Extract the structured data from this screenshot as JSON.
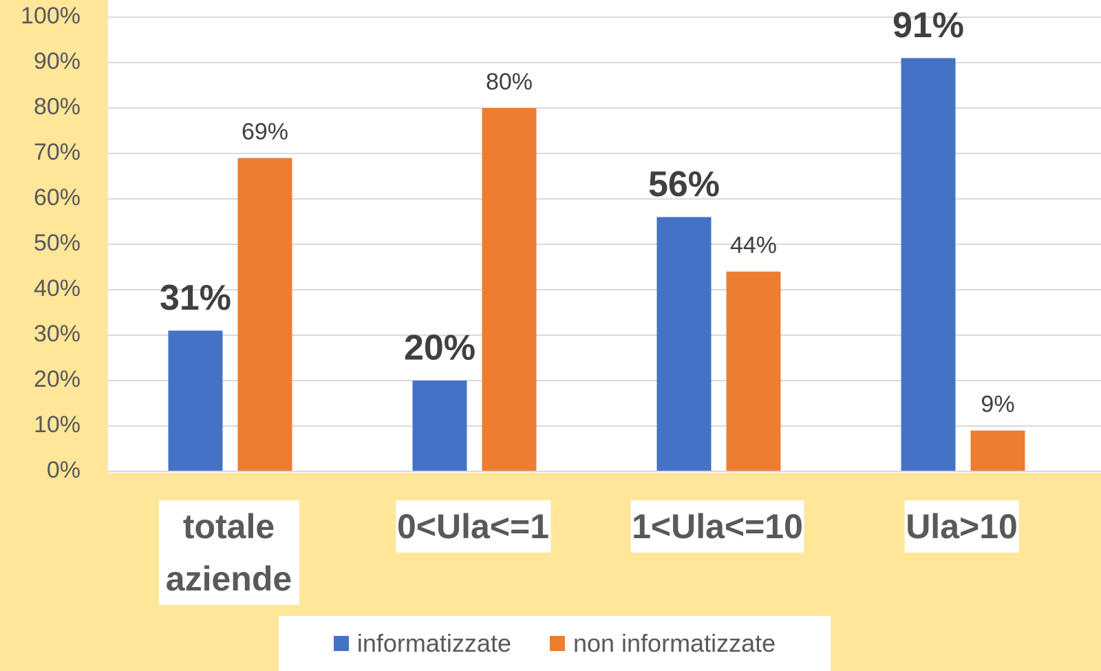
{
  "chart_data": {
    "type": "bar",
    "categories": [
      "totale aziende",
      "0<Ula<=1",
      "1<Ula<=10",
      "Ula>10"
    ],
    "series": [
      {
        "name": "informatizzate",
        "color": "#4472c4",
        "bold_labels": true,
        "values": [
          31,
          20,
          56,
          91
        ],
        "value_labels": [
          "31%",
          "20%",
          "56%",
          "91%"
        ]
      },
      {
        "name": "non informatizzate",
        "color": "#ed7d31",
        "bold_labels": false,
        "values": [
          69,
          80,
          44,
          9
        ],
        "value_labels": [
          "69%",
          "80%",
          "44%",
          "9%"
        ]
      }
    ],
    "ylim": [
      0,
      100
    ],
    "yticks": [
      {
        "value": 0,
        "label": "0%"
      },
      {
        "value": 10,
        "label": "10%"
      },
      {
        "value": 20,
        "label": "20%"
      },
      {
        "value": 30,
        "label": "30%"
      },
      {
        "value": 40,
        "label": "40%"
      },
      {
        "value": 50,
        "label": "50%"
      },
      {
        "value": 60,
        "label": "60%"
      },
      {
        "value": 70,
        "label": "70%"
      },
      {
        "value": 80,
        "label": "80%"
      },
      {
        "value": 90,
        "label": "90%"
      },
      {
        "value": 100,
        "label": "100%"
      }
    ],
    "grid": true,
    "legend": "bottom",
    "background": "#ffe699"
  }
}
